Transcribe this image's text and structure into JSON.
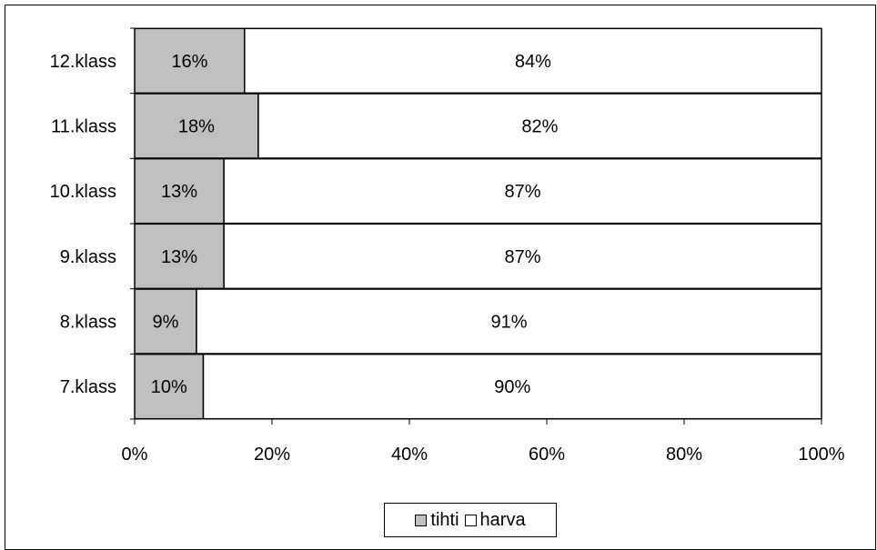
{
  "chart_data": {
    "type": "bar",
    "orientation": "horizontal",
    "stacked": true,
    "categories": [
      "12.klass",
      "11.klass",
      "10.klass",
      "9.klass",
      "8.klass",
      "7.klass"
    ],
    "series": [
      {
        "name": "tihti",
        "values": [
          16,
          18,
          13,
          13,
          9,
          10
        ],
        "labels": [
          "16%",
          "18%",
          "13%",
          "13%",
          "9%",
          "10%"
        ],
        "color": "#c0c0c0"
      },
      {
        "name": "harva",
        "values": [
          84,
          82,
          87,
          87,
          91,
          90
        ],
        "labels": [
          "84%",
          "82%",
          "87%",
          "87%",
          "91%",
          "90%"
        ],
        "color": "#ffffff"
      }
    ],
    "xlim": [
      0,
      100
    ],
    "xticks": [
      0,
      20,
      40,
      60,
      80,
      100
    ],
    "xtick_labels": [
      "0%",
      "20%",
      "40%",
      "60%",
      "80%",
      "100%"
    ],
    "grid": false,
    "legend_position": "bottom"
  }
}
